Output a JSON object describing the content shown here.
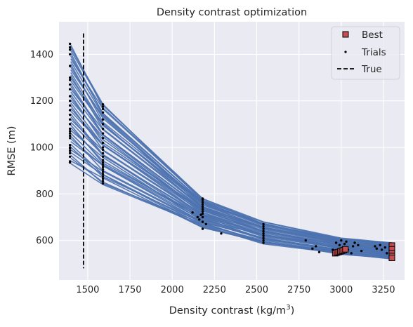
{
  "chart_data": {
    "type": "line",
    "title": "Density contrast optimization",
    "xlabel_base": "Density contrast (kg/m",
    "xlabel_sup": "3",
    "xlabel_close": ")",
    "ylabel": "RMSE (m)",
    "xlim": [
      1330,
      3375
    ],
    "ylim": [
      430,
      1540
    ],
    "xticks": [
      1500,
      1750,
      2000,
      2250,
      2500,
      2750,
      3000,
      3250
    ],
    "yticks": [
      600,
      800,
      1000,
      1200,
      1400
    ],
    "grid": true,
    "legend_position": "top-right",
    "legend": [
      {
        "label": "Best",
        "marker": "square"
      },
      {
        "label": "Trials",
        "marker": "dot"
      },
      {
        "label": "True",
        "marker": "dashed-line"
      }
    ],
    "colors": {
      "background": "#eaeaf2",
      "grid": "#ffffff",
      "curves": "#4c72b0",
      "best_face": "#c44e52",
      "best_edge": "#000000",
      "trials": "#000000",
      "true_line": "#000000"
    },
    "true_value": 1475,
    "true_line_y": [
      480,
      1490
    ],
    "curve_x": [
      1400,
      1590,
      2180,
      2540,
      3000,
      3300
    ],
    "curve_bounds": {
      "upper": [
        1440,
        1185,
        780,
        680,
        610,
        590
      ],
      "lower": [
        930,
        840,
        655,
        585,
        540,
        520
      ]
    },
    "trials": {
      "columns": [
        {
          "x": 1395,
          "y": [
            935,
            940,
            960,
            975,
            985,
            995,
            1000,
            1010,
            1040,
            1050,
            1060,
            1070,
            1080,
            1100,
            1120,
            1140,
            1160,
            1180,
            1200,
            1220,
            1250,
            1270,
            1290,
            1300,
            1350,
            1400,
            1420,
            1430,
            1445
          ]
        },
        {
          "x": 1590,
          "y": [
            845,
            855,
            865,
            875,
            885,
            895,
            905,
            915,
            925,
            935,
            945,
            960,
            975,
            990,
            1000,
            1020,
            1040,
            1060,
            1080,
            1100,
            1120,
            1150,
            1165,
            1175,
            1185
          ]
        },
        {
          "x": 2180,
          "y": [
            650,
            680,
            700,
            715,
            725,
            735,
            745,
            755,
            765,
            775,
            780
          ]
        },
        {
          "x": 2540,
          "y": [
            590,
            600,
            610,
            620,
            630,
            640,
            650,
            660,
            670
          ]
        },
        {
          "x": 3300,
          "y": [
            520,
            530,
            540,
            550,
            560,
            570,
            580
          ]
        }
      ],
      "scattered": [
        [
          2120,
          720
        ],
        [
          2150,
          700
        ],
        [
          2160,
          690
        ],
        [
          2170,
          710
        ],
        [
          2200,
          670
        ],
        [
          2290,
          630
        ],
        [
          2790,
          600
        ],
        [
          2830,
          565
        ],
        [
          2850,
          575
        ],
        [
          2870,
          550
        ],
        [
          2950,
          560
        ],
        [
          2960,
          545
        ],
        [
          2970,
          590
        ],
        [
          2990,
          580
        ],
        [
          3000,
          600
        ],
        [
          3010,
          570
        ],
        [
          3015,
          550
        ],
        [
          3020,
          585
        ],
        [
          3030,
          595
        ],
        [
          3040,
          560
        ],
        [
          3060,
          545
        ],
        [
          3070,
          575
        ],
        [
          3080,
          590
        ],
        [
          3100,
          580
        ],
        [
          3120,
          555
        ],
        [
          3200,
          575
        ],
        [
          3210,
          565
        ],
        [
          3230,
          580
        ],
        [
          3240,
          560
        ],
        [
          3260,
          570
        ],
        [
          3270,
          545
        ]
      ]
    },
    "best": [
      [
        2965,
        545
      ],
      [
        2975,
        548
      ],
      [
        2985,
        550
      ],
      [
        2995,
        553
      ],
      [
        3005,
        556
      ],
      [
        3015,
        558
      ],
      [
        3025,
        562
      ],
      [
        3300,
        578
      ],
      [
        3300,
        562
      ],
      [
        3300,
        545
      ],
      [
        3300,
        533
      ],
      [
        3300,
        525
      ]
    ]
  }
}
